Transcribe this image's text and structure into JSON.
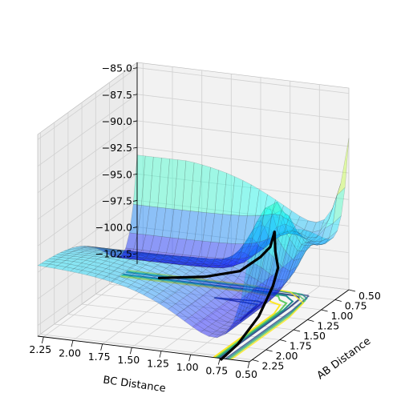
{
  "chart_data": {
    "type": "surface3d",
    "title": "",
    "xlabel": "AB Distance",
    "ylabel": "BC Distance",
    "zlabel": "",
    "xlim": [
      0.5,
      2.3
    ],
    "ylim": [
      0.5,
      2.3
    ],
    "zlim": [
      -103.5,
      -84.5
    ],
    "x_ticks": [
      0.5,
      0.75,
      1.0,
      1.25,
      1.5,
      1.75,
      2.0,
      2.25
    ],
    "x_tick_labels": [
      "0.50",
      "0.75",
      "1.00",
      "1.25",
      "1.50",
      "1.75",
      "2.00",
      "2.25"
    ],
    "y_ticks": [
      0.5,
      0.75,
      1.0,
      1.25,
      1.5,
      1.75,
      2.0,
      2.25
    ],
    "y_tick_labels": [
      "0.50",
      "0.75",
      "1.00",
      "1.25",
      "1.50",
      "1.75",
      "2.00",
      "2.25"
    ],
    "z_ticks": [
      -102.5,
      -100.0,
      -97.5,
      -95.0,
      -92.5,
      -90.0,
      -87.5,
      -85.0
    ],
    "z_tick_labels": [
      "−102.5",
      "−100.0",
      "−97.5",
      "−95.0",
      "−92.5",
      "−90.0",
      "−87.5",
      "−85.0"
    ],
    "surface_clip_z": -84.5,
    "grid": true,
    "colormap": "jet",
    "contour_levels": [
      -103,
      -102,
      -101,
      -100
    ],
    "trajectory": [
      {
        "ab": 2.3,
        "bc": 0.74,
        "z": -103.6
      },
      {
        "ab": 2.0,
        "bc": 0.74,
        "z": -103.3
      },
      {
        "ab": 1.6,
        "bc": 0.75,
        "z": -102.2
      },
      {
        "ab": 1.3,
        "bc": 0.77,
        "z": -100.5
      },
      {
        "ab": 1.1,
        "bc": 0.82,
        "z": -99.6
      },
      {
        "ab": 0.98,
        "bc": 0.9,
        "z": -98.6
      },
      {
        "ab": 0.93,
        "bc": 0.93,
        "z": -97.0
      },
      {
        "ab": 0.9,
        "bc": 0.98,
        "z": -98.6
      },
      {
        "ab": 0.82,
        "bc": 1.1,
        "z": -100.0
      },
      {
        "ab": 0.77,
        "bc": 1.3,
        "z": -101.8
      },
      {
        "ab": 0.75,
        "bc": 1.6,
        "z": -102.8
      },
      {
        "ab": 0.74,
        "bc": 2.0,
        "z": -103.5
      }
    ]
  }
}
